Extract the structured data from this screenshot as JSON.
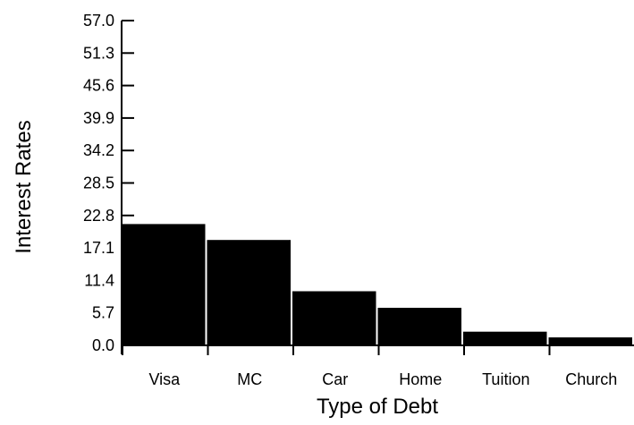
{
  "chart_data": {
    "type": "bar",
    "title": "",
    "xlabel": "Type of Debt",
    "ylabel": "Interest Rates",
    "categories": [
      "Visa",
      "MC",
      "Car",
      "Home",
      "Tuition",
      "Church"
    ],
    "values": [
      21.3,
      18.5,
      9.5,
      6.6,
      2.4,
      1.4
    ],
    "ylim": [
      0,
      57.0
    ],
    "yticks": [
      "0.0",
      "5.7",
      "11.4",
      "17.1",
      "22.8",
      "28.5",
      "34.2",
      "39.9",
      "45.6",
      "51.3",
      "57.0"
    ],
    "grid": false,
    "legend": "none",
    "bar_color": "#000000"
  }
}
